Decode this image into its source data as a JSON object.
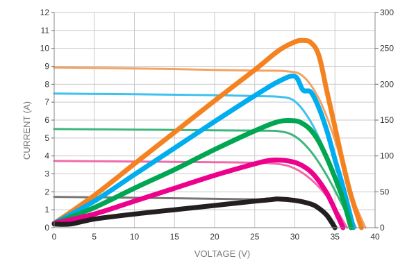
{
  "chart_data": {
    "type": "line",
    "title": "",
    "xlabel": "VOLTAGE (V)",
    "ylabel": "CURRENT (A)",
    "y2label": "",
    "xlim": [
      0,
      40
    ],
    "ylim": [
      0,
      12
    ],
    "y2lim": [
      0,
      300
    ],
    "xticks": [
      "0",
      "5",
      "10",
      "15",
      "20",
      "25",
      "30",
      "35",
      "40"
    ],
    "yticks": [
      "0",
      "1",
      "2",
      "3",
      "4",
      "5",
      "6",
      "7",
      "8",
      "9",
      "10",
      "11",
      "12"
    ],
    "y2ticks": [
      "0",
      "50",
      "100",
      "150",
      "200",
      "250",
      "300"
    ],
    "grid": true,
    "legend": "none",
    "current_series": [
      {
        "color": "#f4a261",
        "axis": "left",
        "points": [
          [
            0,
            8.93
          ],
          [
            10,
            8.88
          ],
          [
            20,
            8.8
          ],
          [
            25,
            8.76
          ],
          [
            29,
            8.72
          ],
          [
            31,
            8.45
          ],
          [
            33,
            7.2
          ],
          [
            35,
            4.9
          ],
          [
            37,
            1.9
          ],
          [
            38.8,
            0
          ]
        ]
      },
      {
        "color": "#3ec1ee",
        "axis": "left",
        "points": [
          [
            0,
            7.48
          ],
          [
            10,
            7.44
          ],
          [
            20,
            7.39
          ],
          [
            25,
            7.34
          ],
          [
            28,
            7.3
          ],
          [
            30,
            7.05
          ],
          [
            32,
            5.9
          ],
          [
            34,
            4.0
          ],
          [
            36,
            1.6
          ],
          [
            37.6,
            0
          ]
        ]
      },
      {
        "color": "#3fb57e",
        "axis": "left",
        "points": [
          [
            0,
            5.5
          ],
          [
            10,
            5.47
          ],
          [
            20,
            5.43
          ],
          [
            25,
            5.41
          ],
          [
            28,
            5.38
          ],
          [
            30,
            5.1
          ],
          [
            32,
            4.25
          ],
          [
            34,
            2.9
          ],
          [
            36,
            1.2
          ],
          [
            37.3,
            0
          ]
        ]
      },
      {
        "color": "#f06aaa",
        "axis": "left",
        "points": [
          [
            0,
            3.72
          ],
          [
            10,
            3.69
          ],
          [
            20,
            3.65
          ],
          [
            25,
            3.62
          ],
          [
            28,
            3.55
          ],
          [
            30,
            3.3
          ],
          [
            32,
            2.7
          ],
          [
            34,
            1.75
          ],
          [
            35.5,
            0.75
          ],
          [
            36.5,
            0
          ]
        ]
      },
      {
        "color": "#777777",
        "axis": "left",
        "points": [
          [
            0,
            1.72
          ],
          [
            10,
            1.67
          ],
          [
            20,
            1.61
          ],
          [
            25,
            1.58
          ],
          [
            28,
            1.56
          ],
          [
            30,
            1.5
          ],
          [
            32,
            1.3
          ],
          [
            34,
            0.8
          ],
          [
            35.2,
            0
          ]
        ]
      }
    ],
    "power_series": [
      {
        "color": "#f58221",
        "axis": "right",
        "points": [
          [
            0,
            6
          ],
          [
            5,
            45
          ],
          [
            10,
            89
          ],
          [
            15,
            133
          ],
          [
            20,
            177
          ],
          [
            25,
            220
          ],
          [
            28,
            247
          ],
          [
            30,
            259
          ],
          [
            31,
            261
          ],
          [
            32,
            258
          ],
          [
            33,
            240
          ],
          [
            34,
            190
          ],
          [
            35,
            140
          ],
          [
            36,
            90
          ],
          [
            37,
            45
          ],
          [
            38.3,
            0
          ]
        ]
      },
      {
        "color": "#00aeef",
        "axis": "right",
        "points": [
          [
            0,
            6
          ],
          [
            5,
            37
          ],
          [
            10,
            74
          ],
          [
            15,
            111
          ],
          [
            20,
            148
          ],
          [
            25,
            184
          ],
          [
            28,
            204
          ],
          [
            30,
            211
          ],
          [
            31,
            192
          ],
          [
            32,
            189
          ],
          [
            33,
            167
          ],
          [
            34,
            135
          ],
          [
            35,
            95
          ],
          [
            36,
            57
          ],
          [
            37.3,
            0
          ]
        ]
      },
      {
        "color": "#00a651",
        "axis": "right",
        "points": [
          [
            0,
            6
          ],
          [
            5,
            28
          ],
          [
            10,
            55
          ],
          [
            15,
            81
          ],
          [
            20,
            109
          ],
          [
            25,
            135
          ],
          [
            28,
            148
          ],
          [
            30,
            149
          ],
          [
            31,
            145
          ],
          [
            32,
            136
          ],
          [
            33,
            120
          ],
          [
            34,
            97
          ],
          [
            35,
            70
          ],
          [
            36,
            40
          ],
          [
            37,
            0
          ]
        ]
      },
      {
        "color": "#ec008c",
        "axis": "right",
        "points": [
          [
            0,
            6
          ],
          [
            5,
            19
          ],
          [
            10,
            37
          ],
          [
            15,
            55
          ],
          [
            20,
            73
          ],
          [
            25,
            89
          ],
          [
            27,
            94
          ],
          [
            28.5,
            94
          ],
          [
            30,
            91
          ],
          [
            31,
            86
          ],
          [
            32,
            78
          ],
          [
            33,
            65
          ],
          [
            34,
            48
          ],
          [
            35,
            25
          ],
          [
            36,
            0
          ]
        ]
      },
      {
        "color": "#231f20",
        "axis": "right",
        "points": [
          [
            0,
            5
          ],
          [
            2,
            5
          ],
          [
            5,
            12
          ],
          [
            10,
            19
          ],
          [
            15,
            25
          ],
          [
            20,
            31
          ],
          [
            25,
            37
          ],
          [
            27,
            39
          ],
          [
            28,
            40
          ],
          [
            30,
            38
          ],
          [
            32,
            33
          ],
          [
            33,
            27
          ],
          [
            34,
            17
          ],
          [
            35,
            0
          ]
        ]
      }
    ]
  }
}
